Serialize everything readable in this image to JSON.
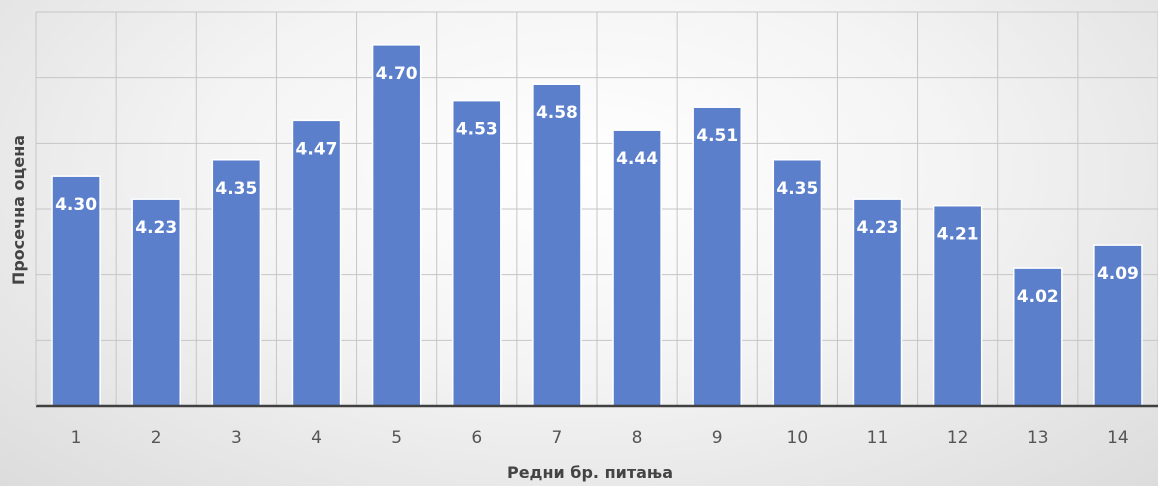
{
  "chart_data": {
    "type": "bar",
    "categories": [
      "1",
      "2",
      "3",
      "4",
      "5",
      "6",
      "7",
      "8",
      "9",
      "10",
      "11",
      "12",
      "13",
      "14"
    ],
    "values": [
      4.3,
      4.23,
      4.35,
      4.47,
      4.7,
      4.53,
      4.58,
      4.44,
      4.51,
      4.35,
      4.23,
      4.21,
      4.02,
      4.09
    ],
    "data_labels": [
      "4.30",
      "4.23",
      "4.35",
      "4.47",
      "4.70",
      "4.53",
      "4.58",
      "4.44",
      "4.51",
      "4.35",
      "4.23",
      "4.21",
      "4.02",
      "4.09"
    ],
    "xlabel": "Редни бр. питања",
    "ylabel": "Просечна оцена",
    "ylim": [
      3.6,
      4.8
    ],
    "grid": true,
    "bar_color": "#5b7fca",
    "bar_edge_color": "#ffffff"
  }
}
